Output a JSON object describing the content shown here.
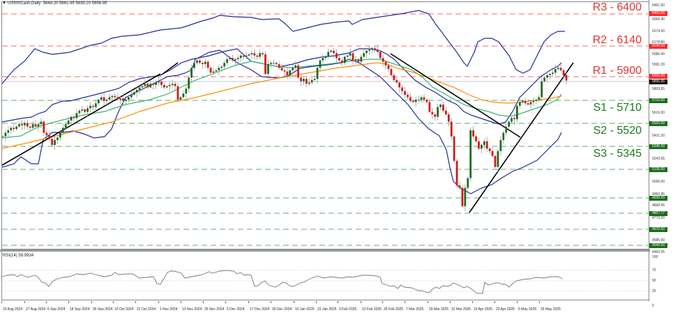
{
  "header": {
    "symbol": "US500Cash,Daily",
    "ohlc": "5848.20 5861.95 5839.20 5856.95"
  },
  "rsi_header": "RSI(14) 59.9934",
  "colors": {
    "resistance": "#ff3333",
    "support": "#1a7a1a",
    "bollinger": "#1f2a9a",
    "ma_short": "#3cb371",
    "ma_long": "#ff8c00",
    "bull_candle": "#1f6b1f",
    "bear_candle": "#d11a1a",
    "trendline": "#000000",
    "rsi_line": "#777777",
    "current_price_tag": "#111111"
  },
  "levels": [
    {
      "name": "R3",
      "label": "R3 - 6400",
      "value": 6400,
      "type": "resistance",
      "tag": "6400.00"
    },
    {
      "name": "R2",
      "label": "R2 - 6140",
      "value": 6140,
      "type": "resistance",
      "tag": "6140.00"
    },
    {
      "name": "R1",
      "label": "R1 - 5900",
      "value": 5900,
      "type": "resistance",
      "tag": "5900.00"
    },
    {
      "name": "S1",
      "label": "S1 - 5710",
      "value": 5710,
      "type": "support",
      "tag": "5710.00"
    },
    {
      "name": "S2",
      "label": "S2 - 5520",
      "value": 5520,
      "type": "support",
      "tag": "5520.00"
    },
    {
      "name": "S3",
      "label": "S3 - 5345",
      "value": 5345,
      "type": "support",
      "tag": "5345.00"
    },
    {
      "name": "",
      "label": "",
      "value": 5135,
      "type": "support",
      "tag": "5135.00"
    },
    {
      "name": "",
      "label": "",
      "value": 4930,
      "type": "support",
      "tag": "4930.00"
    },
    {
      "name": "",
      "label": "",
      "value": 4807.77,
      "type": "support",
      "tag": "4807.77"
    },
    {
      "name": "",
      "label": "",
      "value": 4670,
      "type": "support",
      "tag": "4670.00"
    },
    {
      "name": "",
      "label": "",
      "value": 4540,
      "type": "support",
      "tag": "4540.00"
    }
  ],
  "current_price": {
    "value": 5856.95,
    "tag": "5856.95"
  },
  "y_axis_ticks": [
    "6461.60",
    "6366.40",
    "6274.00",
    "6178.80",
    "6086.40",
    "5991.20",
    "5803.65",
    "5616.00",
    "5431.20",
    "5243.65",
    "5056.00",
    "4960.85",
    "4868.45",
    "4773.20",
    "4585.60",
    "4493.35"
  ],
  "rsi_axis_ticks": [
    "100",
    "70",
    "50",
    "30",
    "0"
  ],
  "x_axis_labels": [
    "15 Aug 2024",
    "27 Aug 2024",
    "6 Sep 2024",
    "18 Sep 2024",
    "30 Sep 2024",
    "10 Oct 2024",
    "22 Oct 2024",
    "1 Nov 2024",
    "13 Nov 2024",
    "25 Nov 2024",
    "5 Dec 2024",
    "17 Dec 2024",
    "30 Dec 2024",
    "10 Jan 2025",
    "22 Jan 2025",
    "3 Feb 2025",
    "13 Feb 2025",
    "25 Feb 2025",
    "7 Mar 2025",
    "19 Mar 2025",
    "31 Mar 2025",
    "10 Apr 2025",
    "23 Apr 2025",
    "5 May 2025",
    "15 May 2025"
  ],
  "chart_data": {
    "type": "candlestick",
    "title": "US500Cash, Daily",
    "xlabel": "",
    "ylabel": "",
    "ylim": [
      4493.35,
      6461.6
    ],
    "categories": [
      "15 Aug 2024",
      "27 Aug 2024",
      "6 Sep 2024",
      "18 Sep 2024",
      "30 Sep 2024",
      "10 Oct 2024",
      "22 Oct 2024",
      "1 Nov 2024",
      "13 Nov 2024",
      "25 Nov 2024",
      "5 Dec 2024",
      "17 Dec 2024",
      "30 Dec 2024",
      "10 Jan 2025",
      "22 Jan 2025",
      "3 Feb 2025",
      "13 Feb 2025",
      "25 Feb 2025",
      "7 Mar 2025",
      "19 Mar 2025",
      "31 Mar 2025",
      "10 Apr 2025",
      "23 Apr 2025",
      "5 May 2025",
      "15 May 2025"
    ],
    "series": [
      {
        "name": "Close (approx)",
        "values": [
          5440,
          5630,
          5410,
          5610,
          5720,
          5790,
          5830,
          5730,
          6000,
          6000,
          6080,
          5880,
          5930,
          5850,
          6090,
          6050,
          6110,
          5970,
          5680,
          5700,
          5580,
          5270,
          5490,
          5650,
          5950
        ]
      },
      {
        "name": "RSI(14)",
        "values": [
          58,
          61,
          42,
          56,
          62,
          64,
          58,
          50,
          65,
          63,
          66,
          44,
          58,
          52,
          66,
          61,
          63,
          47,
          38,
          45,
          25,
          30,
          52,
          58,
          69
        ]
      }
    ],
    "last_ohlc": {
      "open": 5848.2,
      "high": 5861.95,
      "low": 5839.2,
      "close": 5856.95
    },
    "rsi_last": 59.9934,
    "rsi_levels": [
      70,
      50,
      30
    ],
    "horizontal_levels": {
      "R3": 6400,
      "R2": 6140,
      "R1": 5900,
      "S1": 5710,
      "S2": 5520,
      "S3": 5345,
      "extra": [
        5135,
        4930,
        4807.77,
        4670,
        4540
      ]
    },
    "indicators": [
      "Bollinger Bands",
      "Moving Average (short, green)",
      "Moving Average (long, orange)",
      "RSI(14)"
    ],
    "trendlines": [
      "Ascending Aug-Dec 2024",
      "Descending Feb-Apr 2025",
      "Ascending Apr-May 2025"
    ],
    "grid": false,
    "legend": "none"
  }
}
